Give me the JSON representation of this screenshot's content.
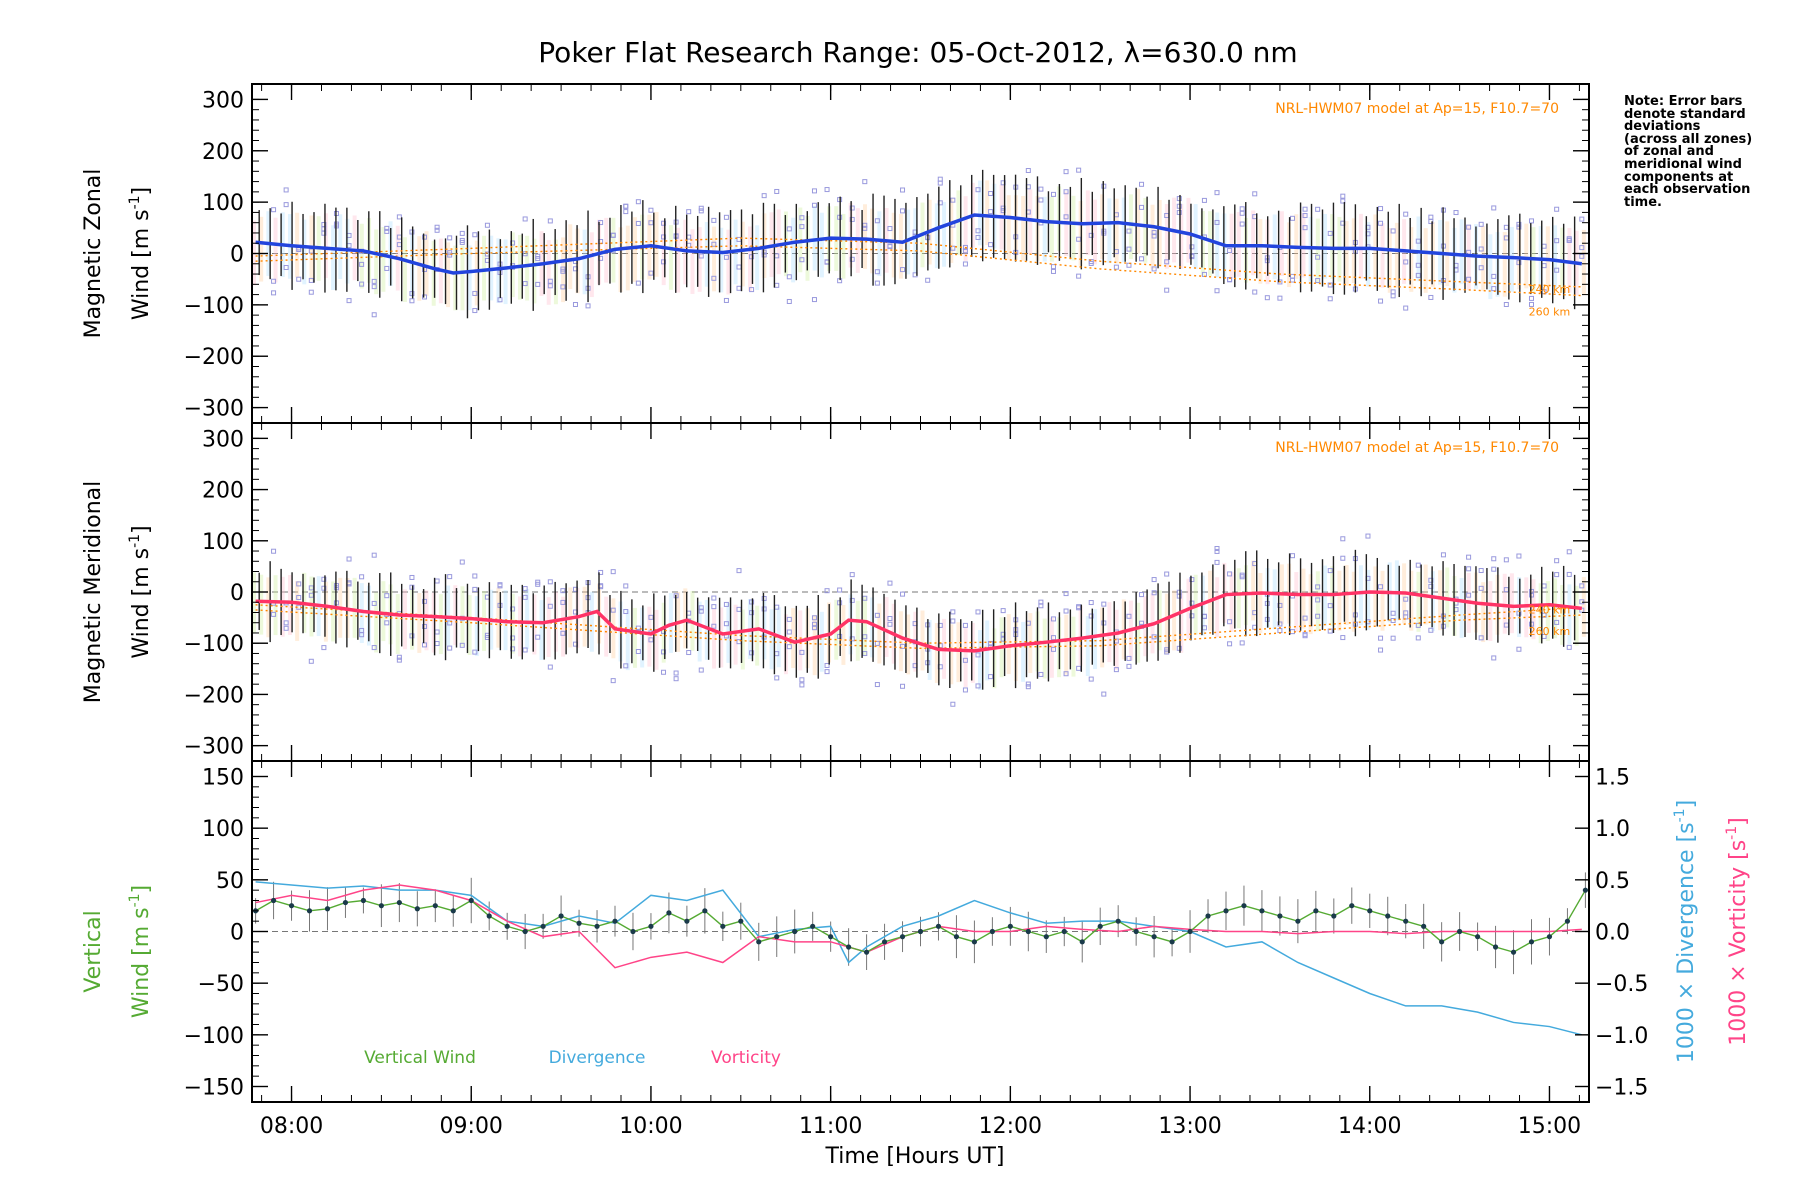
{
  "title": "Poker Flat Research Range: 05-Oct-2012, λ=630.0 nm",
  "xlabel": "Time [Hours UT]",
  "x_tick_labels": [
    "08:00",
    "09:00",
    "10:00",
    "11:00",
    "12:00",
    "13:00",
    "14:00",
    "15:00"
  ],
  "note_lines": [
    "Note: Error bars",
    "denote standard",
    "deviations",
    "(across all zones)",
    "of zonal and",
    "meridional wind",
    "components at",
    "each observation",
    "time."
  ],
  "model_label": "NRL-HWM07 model at Ap=15, F10.7=70",
  "altitude_labels": [
    "240 km",
    "260 km"
  ],
  "colors": {
    "zonal": "#2244dd",
    "meridional": "#ff3366",
    "vertical": "#55aa33",
    "divergence": "#44aadd",
    "vorticity": "#ff4488",
    "model": "#ff8800",
    "scatter": "#9999dd",
    "errbar": "#000000"
  },
  "chart_data": [
    {
      "type": "line",
      "panel": "zonal",
      "ylabel_line1": "Magnetic Zonal",
      "ylabel_line2": "Wind [m s",
      "ylabel_sup": "-1",
      "ylabel_end": "]",
      "ylim": [
        -330,
        330
      ],
      "y_ticks": [
        300,
        200,
        100,
        0,
        -100,
        -200,
        -300
      ],
      "y_tick_labels": [
        "300",
        "200",
        "100",
        "0",
        "−100",
        "−200",
        "−300"
      ],
      "xlim": [
        7.78,
        15.22
      ],
      "series": [
        {
          "role": "mean wind",
          "x": [
            7.8,
            8.0,
            8.2,
            8.4,
            8.6,
            8.8,
            8.9,
            9.0,
            9.2,
            9.4,
            9.6,
            9.8,
            10.0,
            10.2,
            10.4,
            10.6,
            10.8,
            11.0,
            11.2,
            11.4,
            11.6,
            11.8,
            12.0,
            12.2,
            12.4,
            12.6,
            12.8,
            13.0,
            13.2,
            13.4,
            13.6,
            13.8,
            14.0,
            14.2,
            14.4,
            14.6,
            14.8,
            15.0,
            15.18
          ],
          "y": [
            22,
            15,
            10,
            5,
            -10,
            -30,
            -38,
            -35,
            -28,
            -20,
            -10,
            8,
            15,
            5,
            2,
            10,
            22,
            30,
            28,
            22,
            50,
            75,
            70,
            62,
            58,
            60,
            52,
            38,
            15,
            15,
            12,
            10,
            10,
            5,
            0,
            -5,
            -8,
            -12,
            -20
          ]
        },
        {
          "role": "model 240 km",
          "x": [
            7.8,
            9.0,
            10.5,
            11.5,
            12.5,
            13.5,
            14.5,
            15.18
          ],
          "y": [
            -5,
            10,
            30,
            20,
            -15,
            -40,
            -55,
            -65
          ]
        },
        {
          "role": "model 260 km",
          "x": [
            7.8,
            9.0,
            10.5,
            11.5,
            12.5,
            13.5,
            14.5,
            15.18
          ],
          "y": [
            -15,
            0,
            15,
            5,
            -30,
            -55,
            -70,
            -82
          ]
        }
      ],
      "band_half_width": 70
    },
    {
      "type": "line",
      "panel": "meridional",
      "ylabel_line1": "Magnetic Meridional",
      "ylabel_line2": "Wind [m s",
      "ylabel_sup": "-1",
      "ylabel_end": "]",
      "ylim": [
        -330,
        330
      ],
      "y_ticks": [
        300,
        200,
        100,
        0,
        -100,
        -200,
        -300
      ],
      "y_tick_labels": [
        "300",
        "200",
        "100",
        "0",
        "−100",
        "−200",
        "−300"
      ],
      "xlim": [
        7.78,
        15.22
      ],
      "series": [
        {
          "role": "mean wind",
          "x": [
            7.8,
            8.0,
            8.2,
            8.4,
            8.6,
            8.8,
            9.0,
            9.2,
            9.4,
            9.6,
            9.7,
            9.8,
            10.0,
            10.1,
            10.2,
            10.4,
            10.6,
            10.8,
            11.0,
            11.1,
            11.2,
            11.4,
            11.6,
            11.8,
            12.0,
            12.2,
            12.4,
            12.6,
            12.8,
            13.0,
            13.2,
            13.4,
            13.6,
            13.8,
            14.0,
            14.2,
            14.4,
            14.6,
            14.8,
            15.0,
            15.18
          ],
          "y": [
            -18,
            -20,
            -28,
            -38,
            -45,
            -48,
            -52,
            -58,
            -60,
            -48,
            -38,
            -72,
            -82,
            -65,
            -55,
            -82,
            -72,
            -98,
            -82,
            -55,
            -58,
            -90,
            -112,
            -115,
            -105,
            -98,
            -90,
            -80,
            -62,
            -32,
            -5,
            -2,
            -5,
            -5,
            0,
            -2,
            -12,
            -22,
            -28,
            -25,
            -32
          ]
        },
        {
          "role": "model 240 km",
          "x": [
            7.8,
            9.0,
            10.5,
            11.5,
            12.5,
            13.5,
            14.5,
            15.18
          ],
          "y": [
            -25,
            -50,
            -85,
            -100,
            -95,
            -70,
            -45,
            -30
          ]
        },
        {
          "role": "model 260 km",
          "x": [
            7.8,
            9.0,
            10.5,
            11.5,
            12.5,
            13.5,
            14.5,
            15.18
          ],
          "y": [
            -35,
            -60,
            -95,
            -110,
            -105,
            -80,
            -55,
            -45
          ]
        }
      ],
      "band_half_width": 65
    },
    {
      "type": "line",
      "panel": "vertical",
      "ylabel_line1": "Vertical",
      "ylabel_line2": "Wind [m s",
      "ylabel_sup": "-1",
      "ylabel_end": "]",
      "ylim": [
        -165,
        165
      ],
      "y_ticks": [
        150,
        100,
        50,
        0,
        -50,
        -100,
        -150
      ],
      "y_tick_labels": [
        "150",
        "100",
        "50",
        "0",
        "−50",
        "−100",
        "−150"
      ],
      "right_ylim": [
        -1.65,
        1.65
      ],
      "right_ticks": [
        1.5,
        1.0,
        0.5,
        0.0,
        -0.5,
        -1.0,
        -1.5
      ],
      "right_tick_labels": [
        "1.5",
        "1.0",
        "0.5",
        "0.0",
        "−0.5",
        "−1.0",
        "−1.5"
      ],
      "right_label_div": "1000 × Divergence [s",
      "right_label_vort": "1000 × Vorticity [s",
      "right_label_sup": "-1",
      "right_label_end": "]",
      "legend": [
        "Vertical Wind",
        "Divergence",
        "Vorticity"
      ],
      "xlim": [
        7.78,
        15.22
      ],
      "series": [
        {
          "name": "Vertical Wind",
          "x": [
            7.8,
            7.9,
            8.0,
            8.1,
            8.2,
            8.3,
            8.4,
            8.5,
            8.6,
            8.7,
            8.8,
            8.9,
            9.0,
            9.1,
            9.2,
            9.3,
            9.4,
            9.5,
            9.6,
            9.7,
            9.8,
            9.9,
            10.0,
            10.1,
            10.2,
            10.3,
            10.4,
            10.5,
            10.6,
            10.7,
            10.8,
            10.9,
            11.0,
            11.1,
            11.2,
            11.3,
            11.4,
            11.5,
            11.6,
            11.7,
            11.8,
            11.9,
            12.0,
            12.1,
            12.2,
            12.3,
            12.4,
            12.5,
            12.6,
            12.7,
            12.8,
            12.9,
            13.0,
            13.1,
            13.2,
            13.3,
            13.4,
            13.5,
            13.6,
            13.7,
            13.8,
            13.9,
            14.0,
            14.1,
            14.2,
            14.3,
            14.4,
            14.5,
            14.6,
            14.7,
            14.8,
            14.9,
            15.0,
            15.1,
            15.2
          ],
          "y": [
            20,
            30,
            25,
            20,
            22,
            28,
            30,
            25,
            28,
            22,
            25,
            20,
            30,
            15,
            5,
            0,
            5,
            15,
            8,
            5,
            10,
            0,
            5,
            18,
            10,
            20,
            5,
            10,
            -10,
            -5,
            0,
            5,
            -5,
            -15,
            -20,
            -10,
            -5,
            0,
            5,
            -5,
            -10,
            0,
            5,
            0,
            -5,
            0,
            -10,
            5,
            10,
            0,
            -5,
            -10,
            0,
            15,
            20,
            25,
            20,
            15,
            10,
            20,
            15,
            25,
            20,
            15,
            10,
            5,
            -10,
            0,
            -5,
            -15,
            -20,
            -10,
            -5,
            10,
            40
          ]
        },
        {
          "name": "Divergence",
          "x": [
            7.8,
            8.0,
            8.2,
            8.4,
            8.6,
            8.8,
            9.0,
            9.2,
            9.4,
            9.6,
            9.8,
            10.0,
            10.2,
            10.4,
            10.6,
            10.8,
            11.0,
            11.1,
            11.2,
            11.4,
            11.6,
            11.8,
            12.0,
            12.2,
            12.4,
            12.6,
            12.8,
            13.0,
            13.2,
            13.4,
            13.6,
            13.8,
            14.0,
            14.2,
            14.4,
            14.6,
            14.8,
            15.0,
            15.18
          ],
          "y": [
            0.48,
            0.45,
            0.42,
            0.44,
            0.4,
            0.4,
            0.35,
            0.1,
            0.05,
            0.15,
            0.08,
            0.35,
            0.3,
            0.4,
            -0.05,
            0.02,
            0.05,
            -0.3,
            -0.15,
            0.05,
            0.15,
            0.3,
            0.18,
            0.08,
            0.1,
            0.1,
            0.05,
            0.0,
            -0.15,
            -0.1,
            -0.3,
            -0.45,
            -0.6,
            -0.72,
            -0.72,
            -0.78,
            -0.88,
            -0.92,
            -1.0
          ]
        },
        {
          "name": "Vorticity",
          "x": [
            7.8,
            8.0,
            8.2,
            8.4,
            8.6,
            8.8,
            9.0,
            9.2,
            9.4,
            9.6,
            9.8,
            10.0,
            10.2,
            10.4,
            10.6,
            10.8,
            11.0,
            11.2,
            11.4,
            11.6,
            11.8,
            12.0,
            12.2,
            12.4,
            12.6,
            12.8,
            13.0,
            13.2,
            13.4,
            13.6,
            13.8,
            14.0,
            14.2,
            14.4,
            14.6,
            14.8,
            15.0,
            15.18
          ],
          "y": [
            0.28,
            0.35,
            0.3,
            0.4,
            0.45,
            0.4,
            0.3,
            0.1,
            -0.05,
            0.0,
            -0.35,
            -0.25,
            -0.2,
            -0.3,
            -0.05,
            -0.1,
            -0.1,
            -0.2,
            -0.05,
            0.05,
            0.0,
            0.0,
            0.05,
            0.02,
            0.0,
            0.05,
            0.02,
            0.0,
            0.0,
            -0.02,
            0.0,
            0.0,
            -0.02,
            0.0,
            0.0,
            0.0,
            0.0,
            0.02
          ]
        }
      ]
    }
  ]
}
